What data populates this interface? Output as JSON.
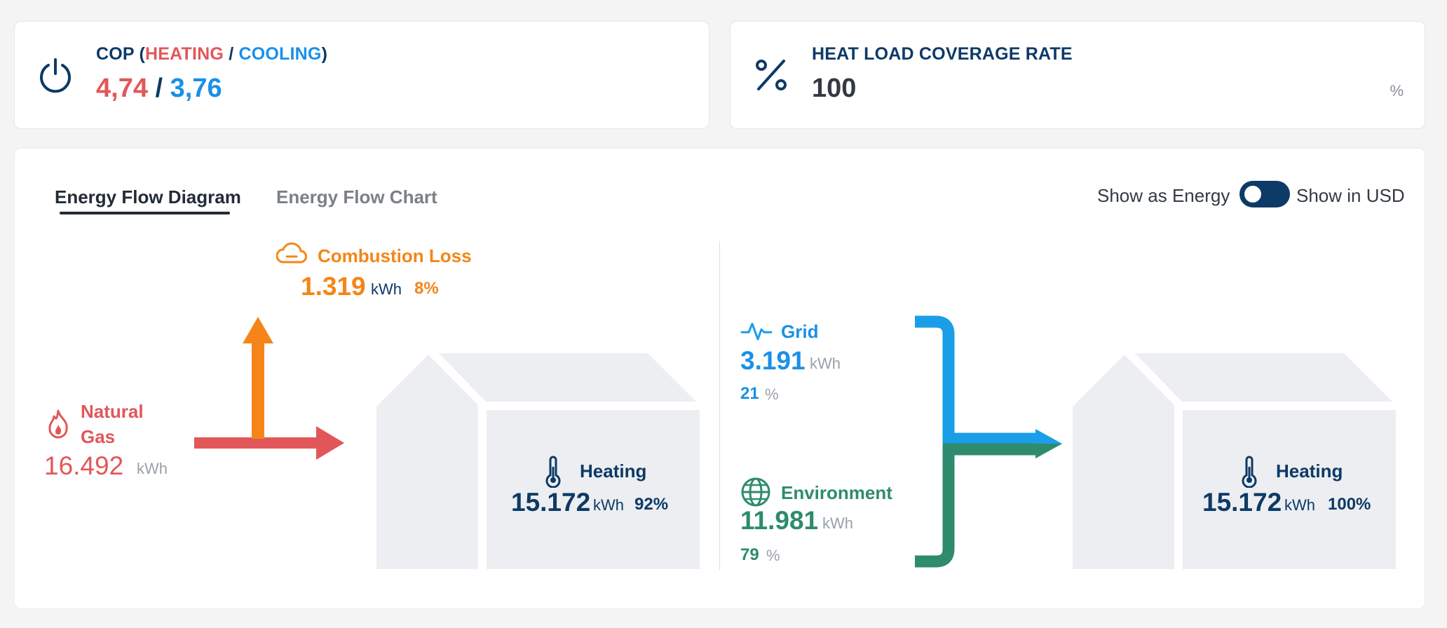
{
  "kpis": {
    "cop": {
      "title_prefix": "COP (",
      "title_heating": "HEATING",
      "title_sep": " / ",
      "title_cooling": "COOLING",
      "title_suffix": ")",
      "value_heating": "4,74",
      "value_sep": " / ",
      "value_cooling": "3,76",
      "icon": "power-icon"
    },
    "coverage": {
      "title": "HEAT LOAD COVERAGE RATE",
      "value": "100",
      "unit": "%",
      "icon": "percent-icon"
    }
  },
  "tabs": [
    {
      "label": "Energy Flow Diagram",
      "active": true
    },
    {
      "label": "Energy Flow Chart",
      "active": false
    }
  ],
  "toggle": {
    "left_label": "Show as Energy",
    "right_label": "Show in USD",
    "state": "energy"
  },
  "left_flow": {
    "input": {
      "name_line1": "Natural",
      "name_line2": "Gas",
      "value": "16.492",
      "unit": "kWh",
      "icon": "flame-icon"
    },
    "loss": {
      "name": "Combustion Loss",
      "value": "1.319",
      "unit": "kWh",
      "percent": "8%",
      "icon": "cloud-icon"
    },
    "output": {
      "name": "Heating",
      "value": "15.172",
      "unit": "kWh",
      "percent": "92%",
      "icon": "thermometer-icon"
    }
  },
  "right_flow": {
    "grid": {
      "name": "Grid",
      "value": "3.191",
      "unit": "kWh",
      "percent": "21",
      "percent_unit": "%",
      "icon": "pulse-icon"
    },
    "environment": {
      "name": "Environment",
      "value": "11.981",
      "unit": "kWh",
      "percent": "79",
      "percent_unit": "%",
      "icon": "globe-icon"
    },
    "output": {
      "name": "Heating",
      "value": "15.172",
      "unit": "kWh",
      "percent": "100%",
      "icon": "thermometer-icon"
    }
  },
  "colors": {
    "gas": "#e15759",
    "loss": "#f58518",
    "grid": "#1a9ee8",
    "environment": "#2e8b6e",
    "navy": "#0d3a66",
    "house": "#eceef1"
  }
}
